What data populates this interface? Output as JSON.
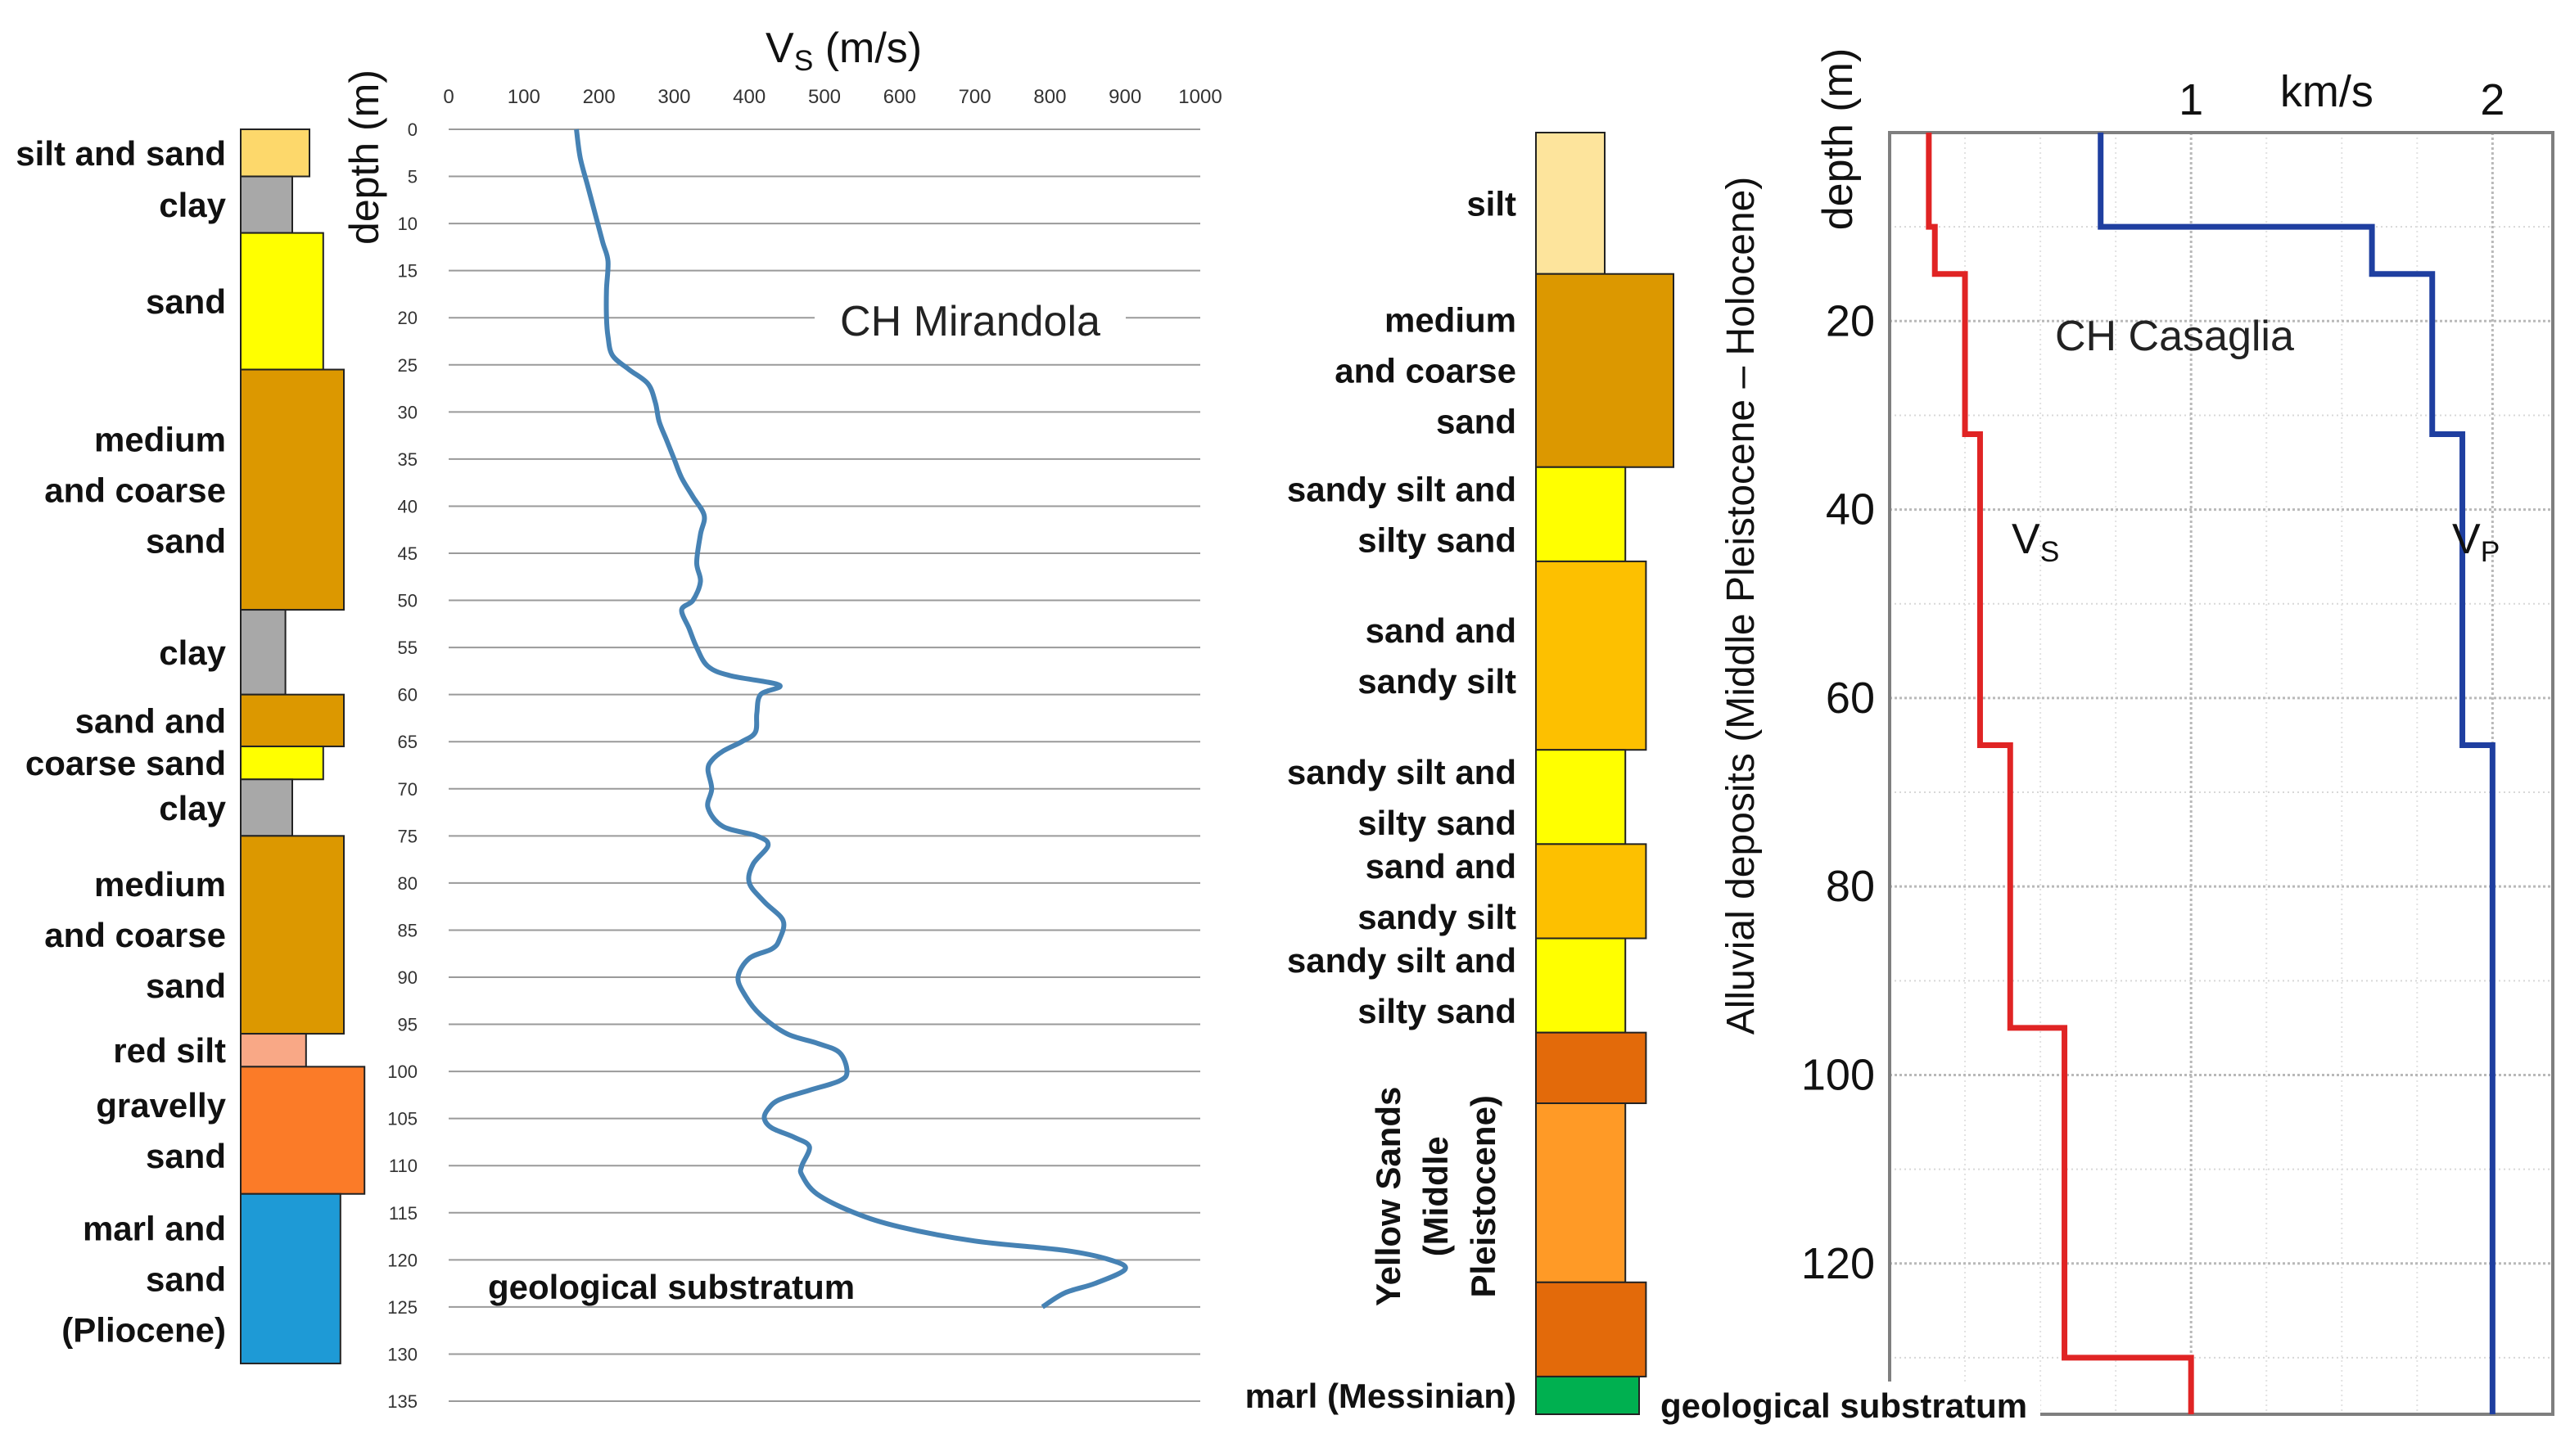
{
  "chart_data": [
    {
      "type": "line",
      "title": "CH Mirandola",
      "xlabel_main": "V",
      "xlabel_sub": "S",
      "xlabel_unit": "(m/s)",
      "ylabel": "depth (m)",
      "xlim": [
        0,
        1000
      ],
      "ylim": [
        0,
        135
      ],
      "x_ticks": [
        0,
        100,
        200,
        300,
        400,
        500,
        600,
        700,
        800,
        900,
        1000
      ],
      "y_ticks": [
        0,
        5,
        10,
        15,
        20,
        25,
        30,
        35,
        40,
        45,
        50,
        55,
        60,
        65,
        70,
        75,
        80,
        85,
        90,
        95,
        100,
        105,
        110,
        115,
        120,
        125,
        130,
        135
      ],
      "grid": "horizontal",
      "annotation": "geological substratum",
      "series": [
        {
          "color": "#4682b4",
          "points": [
            [
              170,
              0
            ],
            [
              175,
              3
            ],
            [
              185,
              6
            ],
            [
              195,
              9
            ],
            [
              205,
              12
            ],
            [
              212,
              14
            ],
            [
              210,
              17
            ],
            [
              210,
              20
            ],
            [
              212,
              22
            ],
            [
              218,
              24
            ],
            [
              240,
              25.5
            ],
            [
              265,
              27
            ],
            [
              275,
              29
            ],
            [
              280,
              31
            ],
            [
              290,
              33
            ],
            [
              300,
              35
            ],
            [
              310,
              37
            ],
            [
              325,
              39
            ],
            [
              340,
              41
            ],
            [
              335,
              43
            ],
            [
              330,
              46
            ],
            [
              335,
              48
            ],
            [
              325,
              50
            ],
            [
              310,
              51
            ],
            [
              320,
              53
            ],
            [
              330,
              55
            ],
            [
              345,
              57
            ],
            [
              375,
              58
            ],
            [
              440,
              59
            ],
            [
              415,
              60
            ],
            [
              410,
              62
            ],
            [
              408,
              64
            ],
            [
              390,
              65
            ],
            [
              365,
              66
            ],
            [
              350,
              67
            ],
            [
              345,
              68
            ],
            [
              350,
              70
            ],
            [
              345,
              72
            ],
            [
              365,
              74
            ],
            [
              410,
              75
            ],
            [
              425,
              76
            ],
            [
              405,
              78
            ],
            [
              400,
              80
            ],
            [
              420,
              82
            ],
            [
              445,
              84
            ],
            [
              440,
              86
            ],
            [
              430,
              87
            ],
            [
              400,
              88
            ],
            [
              385,
              90
            ],
            [
              395,
              92
            ],
            [
              415,
              94
            ],
            [
              450,
              96
            ],
            [
              490,
              97
            ],
            [
              520,
              98
            ],
            [
              530,
              100
            ],
            [
              520,
              101
            ],
            [
              480,
              102
            ],
            [
              440,
              103
            ],
            [
              425,
              104
            ],
            [
              420,
              105
            ],
            [
              430,
              106
            ],
            [
              460,
              107
            ],
            [
              480,
              108
            ],
            [
              470,
              110
            ],
            [
              470,
              111
            ],
            [
              490,
              113
            ],
            [
              540,
              115
            ],
            [
              600,
              116.5
            ],
            [
              700,
              118
            ],
            [
              820,
              119
            ],
            [
              880,
              120
            ],
            [
              900,
              121
            ],
            [
              860,
              122.5
            ],
            [
              820,
              123.5
            ],
            [
              790,
              125
            ]
          ]
        }
      ],
      "lithology": [
        {
          "label_lines": [
            "silt and sand"
          ],
          "top": 0,
          "bottom": 5,
          "width": 1,
          "color": "#fdd86b"
        },
        {
          "label_lines": [
            "clay"
          ],
          "top": 5,
          "bottom": 11,
          "width": 0.75,
          "color": "#a8a8a8"
        },
        {
          "label_lines": [
            "sand"
          ],
          "top": 11,
          "bottom": 25.5,
          "width": 1.2,
          "color": "#ffff00"
        },
        {
          "label_lines": [
            "medium",
            "and coarse",
            "sand"
          ],
          "top": 25.5,
          "bottom": 51,
          "width": 1.5,
          "color": "#dc9800"
        },
        {
          "label_lines": [
            "clay"
          ],
          "top": 51,
          "bottom": 60,
          "width": 0.65,
          "color": "#a8a8a8"
        },
        {
          "label_lines": [
            "sand and"
          ],
          "top": 60,
          "bottom": 65.5,
          "width": 1.5,
          "color": "#dc9800"
        },
        {
          "label_lines": [
            "coarse sand"
          ],
          "top": 65.5,
          "bottom": 69,
          "width": 1.2,
          "color": "#ffff00"
        },
        {
          "label_lines": [
            "clay"
          ],
          "top": 69,
          "bottom": 75,
          "width": 0.75,
          "color": "#a8a8a8"
        },
        {
          "label_lines": [
            "medium",
            "and coarse",
            "sand"
          ],
          "top": 75,
          "bottom": 96,
          "width": 1.5,
          "color": "#dc9800"
        },
        {
          "label_lines": [
            "red silt"
          ],
          "top": 96,
          "bottom": 99.5,
          "width": 0.95,
          "color": "#f9a886"
        },
        {
          "label_lines": [
            "gravelly",
            "sand"
          ],
          "top": 99.5,
          "bottom": 113,
          "width": 1.8,
          "color": "#fb7b28"
        },
        {
          "label_lines": [
            "marl and",
            "sand",
            "(Pliocene)"
          ],
          "top": 113,
          "bottom": 131,
          "width": 1.45,
          "color": "#1e9ad6"
        }
      ]
    },
    {
      "type": "line",
      "title": "CH Casaglia",
      "xlabel": "km/s",
      "ylabel": "depth (m)",
      "xlim": [
        0,
        2.2
      ],
      "ylim": [
        0,
        136
      ],
      "x_ticks": [
        1,
        2
      ],
      "y_ticks": [
        20,
        40,
        60,
        80,
        100,
        120
      ],
      "grid": "both",
      "annotation": "geological substratum",
      "vertical_label": "Alluvial deposits (Middle Pleistocene – Holocene)",
      "series": [
        {
          "name_main": "V",
          "name_sub": "S",
          "color": "#e02424",
          "points": [
            [
              0.13,
              0
            ],
            [
              0.13,
              10
            ],
            [
              0.15,
              10
            ],
            [
              0.15,
              15
            ],
            [
              0.25,
              15
            ],
            [
              0.25,
              32
            ],
            [
              0.3,
              32
            ],
            [
              0.3,
              65
            ],
            [
              0.4,
              65
            ],
            [
              0.4,
              95
            ],
            [
              0.58,
              95
            ],
            [
              0.58,
              130
            ],
            [
              1.0,
              130
            ],
            [
              1.0,
              136
            ]
          ]
        },
        {
          "name_main": "V",
          "name_sub": "P",
          "color": "#1f3fa0",
          "points": [
            [
              0.7,
              0
            ],
            [
              0.7,
              10
            ],
            [
              1.6,
              10
            ],
            [
              1.6,
              15
            ],
            [
              1.8,
              15
            ],
            [
              1.8,
              32
            ],
            [
              1.9,
              32
            ],
            [
              1.9,
              65
            ],
            [
              2.0,
              65
            ],
            [
              2.0,
              136
            ]
          ]
        }
      ],
      "lithology": [
        {
          "label_lines": [
            "silt"
          ],
          "top": 0,
          "bottom": 15,
          "width": 1,
          "color": "#fde49c"
        },
        {
          "label_lines": [
            "medium",
            "and coarse",
            "sand"
          ],
          "top": 15,
          "bottom": 35.5,
          "width": 2,
          "color": "#dc9800"
        },
        {
          "label_lines": [
            "sandy silt and",
            "silty sand"
          ],
          "top": 35.5,
          "bottom": 45.5,
          "width": 1.3,
          "color": "#ffff00"
        },
        {
          "label_lines": [
            "sand and",
            "sandy silt"
          ],
          "top": 45.5,
          "bottom": 65.5,
          "width": 1.6,
          "color": "#fdc000"
        },
        {
          "label_lines": [
            "sandy silt and",
            "silty sand"
          ],
          "top": 65.5,
          "bottom": 75.5,
          "width": 1.3,
          "color": "#ffff00"
        },
        {
          "label_lines": [
            "sand and",
            "sandy silt"
          ],
          "top": 75.5,
          "bottom": 85.5,
          "width": 1.6,
          "color": "#fdc000"
        },
        {
          "label_lines": [
            "sandy silt and",
            "silty sand"
          ],
          "top": 85.5,
          "bottom": 95.5,
          "width": 1.3,
          "color": "#ffff00"
        },
        {
          "label_lines": [],
          "top": 95.5,
          "bottom": 103,
          "width": 1.6,
          "color": "#e36a0a"
        },
        {
          "label_lines": [],
          "top": 103,
          "bottom": 122,
          "width": 1.3,
          "color": "#ff9a26"
        },
        {
          "label_lines": [],
          "top": 122,
          "bottom": 132,
          "width": 1.6,
          "color": "#e36a0a"
        },
        {
          "label_lines": [
            "marl (Messinian)"
          ],
          "top": 132,
          "bottom": 136,
          "width": 1.5,
          "color": "#00b050"
        }
      ],
      "yellow_sands_label_lines": [
        "Yellow Sands",
        "(Middle",
        "Pleistocene)"
      ]
    }
  ]
}
